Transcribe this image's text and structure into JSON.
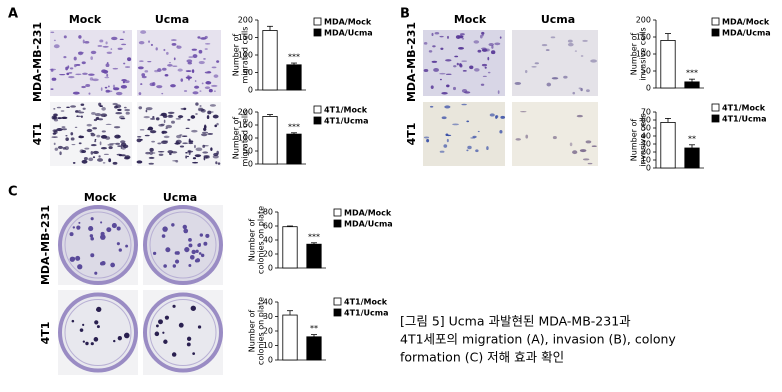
{
  "chart_data": [
    {
      "type": "bar",
      "ylabel": [
        "Number of",
        "migrated cells"
      ],
      "ylim": [
        0,
        200
      ],
      "yticks": [
        0,
        50,
        100,
        150,
        200
      ],
      "annotation": "***",
      "series": [
        {
          "name": "MDA/Mock",
          "color": "#ffffff",
          "values": [
            170
          ],
          "errors": [
            12
          ]
        },
        {
          "name": "MDA/Ucma",
          "color": "#000000",
          "values": [
            72
          ],
          "errors": [
            5
          ]
        }
      ]
    },
    {
      "type": "bar",
      "ylabel": [
        "Number of",
        "migrated cells"
      ],
      "ylim": [
        0,
        200
      ],
      "yticks": [
        0,
        50,
        100,
        150,
        200
      ],
      "annotation": "***",
      "series": [
        {
          "name": "4T1/Mock",
          "color": "#ffffff",
          "values": [
            183
          ],
          "errors": [
            7
          ]
        },
        {
          "name": "4T1/Ucma",
          "color": "#000000",
          "values": [
            115
          ],
          "errors": [
            5
          ]
        }
      ]
    },
    {
      "type": "bar",
      "ylabel": [
        "Number of",
        "invasive cells"
      ],
      "ylim": [
        0,
        200
      ],
      "yticks": [
        0,
        50,
        100,
        150,
        200
      ],
      "annotation": "***",
      "series": [
        {
          "name": "MDA/Mock",
          "color": "#ffffff",
          "values": [
            140
          ],
          "errors": [
            20
          ]
        },
        {
          "name": "MDA/Ucma",
          "color": "#000000",
          "values": [
            18
          ],
          "errors": [
            8
          ]
        }
      ]
    },
    {
      "type": "bar",
      "ylabel": [
        "Number of",
        "invasive cells"
      ],
      "ylim": [
        0,
        70
      ],
      "yticks": [
        0,
        10,
        20,
        30,
        40,
        50,
        60,
        70
      ],
      "annotation": "**",
      "series": [
        {
          "name": "4T1/Mock",
          "color": "#ffffff",
          "values": [
            57
          ],
          "errors": [
            5
          ]
        },
        {
          "name": "4T1/Ucma",
          "color": "#000000",
          "values": [
            25
          ],
          "errors": [
            4
          ]
        }
      ]
    },
    {
      "type": "bar",
      "ylabel": [
        "Number of",
        "colonies on plate"
      ],
      "ylim": [
        0,
        80
      ],
      "yticks": [
        0,
        20,
        40,
        60,
        80
      ],
      "annotation": "***",
      "series": [
        {
          "name": "MDA/Mock",
          "color": "#ffffff",
          "values": [
            59
          ],
          "errors": [
            1
          ]
        },
        {
          "name": "MDA/Ucma",
          "color": "#000000",
          "values": [
            34
          ],
          "errors": [
            2
          ]
        }
      ]
    },
    {
      "type": "bar",
      "ylabel": [
        "Number of",
        "colonies on plate"
      ],
      "ylim": [
        0,
        40
      ],
      "yticks": [
        0,
        10,
        20,
        30,
        40
      ],
      "annotation": "**",
      "series": [
        {
          "name": "4T1/Mock",
          "color": "#ffffff",
          "values": [
            31
          ],
          "errors": [
            3
          ]
        },
        {
          "name": "4T1/Ucma",
          "color": "#000000",
          "values": [
            16
          ],
          "errors": [
            1.5
          ]
        }
      ]
    }
  ],
  "panels": [
    {
      "label": "A",
      "columns": [
        "Mock",
        "Ucma"
      ],
      "rows": [
        "MDA-MB-231",
        "4T1"
      ]
    },
    {
      "label": "B",
      "columns": [
        "Mock",
        "Ucma"
      ],
      "rows": [
        "MDA-MB-231",
        "4T1"
      ]
    },
    {
      "label": "C",
      "columns": [
        "Mock",
        "Ucma"
      ],
      "rows": [
        "MDA-MB-231",
        "4T1"
      ]
    }
  ],
  "caption": [
    "[그림 5] Ucma 과발현된 MDA-MB-231과",
    "4T1세포의 migration (A), invasion (B), colony",
    "formation (C) 저해 효과 확인"
  ]
}
